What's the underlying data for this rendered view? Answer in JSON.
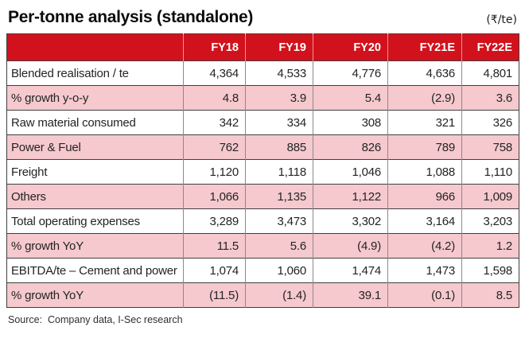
{
  "title": "Per-tonne analysis (standalone)",
  "unit_label": "(₹/te)",
  "source_note": "Source:  Company data, I-Sec research",
  "colors": {
    "header_bg": "#d1121c",
    "header_text": "#ffffff",
    "shaded_row_bg": "#f5c9ce",
    "body_text": "#242424",
    "border_dark": "#3f3f3f",
    "border_gray": "#8a8a8a"
  },
  "chart_data": {
    "type": "table",
    "title": "Per-tonne analysis (standalone)",
    "unit": "₹/te",
    "columns": [
      "FY18",
      "FY19",
      "FY20",
      "FY21E",
      "FY22E"
    ],
    "rows": [
      {
        "label": "Blended realisation / te",
        "values": [
          "4,364",
          "4,533",
          "4,776",
          "4,636",
          "4,801"
        ]
      },
      {
        "label": "% growth y-o-y",
        "values": [
          "4.8",
          "3.9",
          "5.4",
          "(2.9)",
          "3.6"
        ]
      },
      {
        "label": "Raw material consumed",
        "values": [
          "342",
          "334",
          "308",
          "321",
          "326"
        ]
      },
      {
        "label": "Power & Fuel",
        "values": [
          "762",
          "885",
          "826",
          "789",
          "758"
        ]
      },
      {
        "label": "Freight",
        "values": [
          "1,120",
          "1,118",
          "1,046",
          "1,088",
          "1,110"
        ]
      },
      {
        "label": "Others",
        "values": [
          "1,066",
          "1,135",
          "1,122",
          "966",
          "1,009"
        ]
      },
      {
        "label": "Total operating expenses",
        "values": [
          "3,289",
          "3,473",
          "3,302",
          "3,164",
          "3,203"
        ]
      },
      {
        "label": "% growth YoY",
        "values": [
          "11.5",
          "5.6",
          "(4.9)",
          "(4.2)",
          "1.2"
        ]
      },
      {
        "label": "EBITDA/te – Cement and power",
        "values": [
          "1,074",
          "1,060",
          "1,474",
          "1,473",
          "1,598"
        ]
      },
      {
        "label": "% growth YoY",
        "values": [
          "(11.5)",
          "(1.4)",
          "39.1",
          "(0.1)",
          "8.5"
        ]
      }
    ],
    "notes": "Values in parentheses are negative. Shaded rows alternate pink (#f5c9ce)."
  }
}
